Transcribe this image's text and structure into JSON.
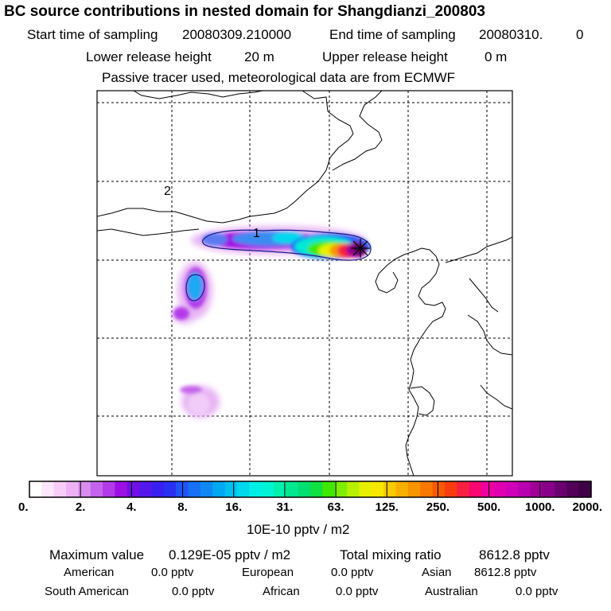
{
  "header": {
    "title": "BC  source contributions in nested domain for Shangdianzi_200803",
    "start_label": "Start time of sampling",
    "start_value": "20080309.210000",
    "end_label": "End time of sampling",
    "end_value": "20080310.",
    "end_extra": "0",
    "lower_label": "Lower release height",
    "lower_value": "20 m",
    "upper_label": "Upper release height",
    "upper_value": "0 m",
    "note": "Passive tracer used, meteorological data are from ECMWF"
  },
  "map": {
    "labels": [
      "1",
      "2"
    ],
    "station_marker": "station-cross"
  },
  "colorbar": {
    "unit": "10E-10 pptv / m2",
    "ticks": [
      "0.",
      "2.",
      "4.",
      "8.",
      "16.",
      "31.",
      "63.",
      "125.",
      "250.",
      "500.",
      "1000.",
      "2000."
    ],
    "colors": [
      "#ffffff",
      "#fbe6fb",
      "#f5cdf7",
      "#eeb2f4",
      "#d98df0",
      "#c464ec",
      "#b23ae8",
      "#9d10e4",
      "#7010e6",
      "#5518ec",
      "#3a20f0",
      "#2a30f2",
      "#1f55f4",
      "#1870f4",
      "#1088f2",
      "#00a8f0",
      "#00c0f0",
      "#00d8ee",
      "#00f0e8",
      "#00f4d4",
      "#00f0b0",
      "#00e890",
      "#00e070",
      "#10e040",
      "#40e800",
      "#80ee00",
      "#b8f000",
      "#e8f000",
      "#f8e800",
      "#f8cc00",
      "#f8b000",
      "#f89400",
      "#f87800",
      "#f85a00",
      "#f83c10",
      "#f82040",
      "#f80870",
      "#f000a0",
      "#e000b0",
      "#d000b8",
      "#b800b0",
      "#a00098",
      "#880088",
      "#6a0070",
      "#520058",
      "#400048"
    ]
  },
  "stats": {
    "max_label": "Maximum value",
    "max_value": "0.129E-05 pptv / m2",
    "total_label": "Total mixing ratio",
    "total_value": "8612.8 pptv",
    "regions": [
      {
        "name": "American",
        "value": "0.0 pptv"
      },
      {
        "name": "European",
        "value": "0.0 pptv"
      },
      {
        "name": "Asian",
        "value": "8612.8 pptv"
      },
      {
        "name": "South American",
        "value": "0.0 pptv"
      },
      {
        "name": "African",
        "value": "0.0 pptv"
      },
      {
        "name": "Australian",
        "value": "0.0 pptv"
      }
    ]
  }
}
